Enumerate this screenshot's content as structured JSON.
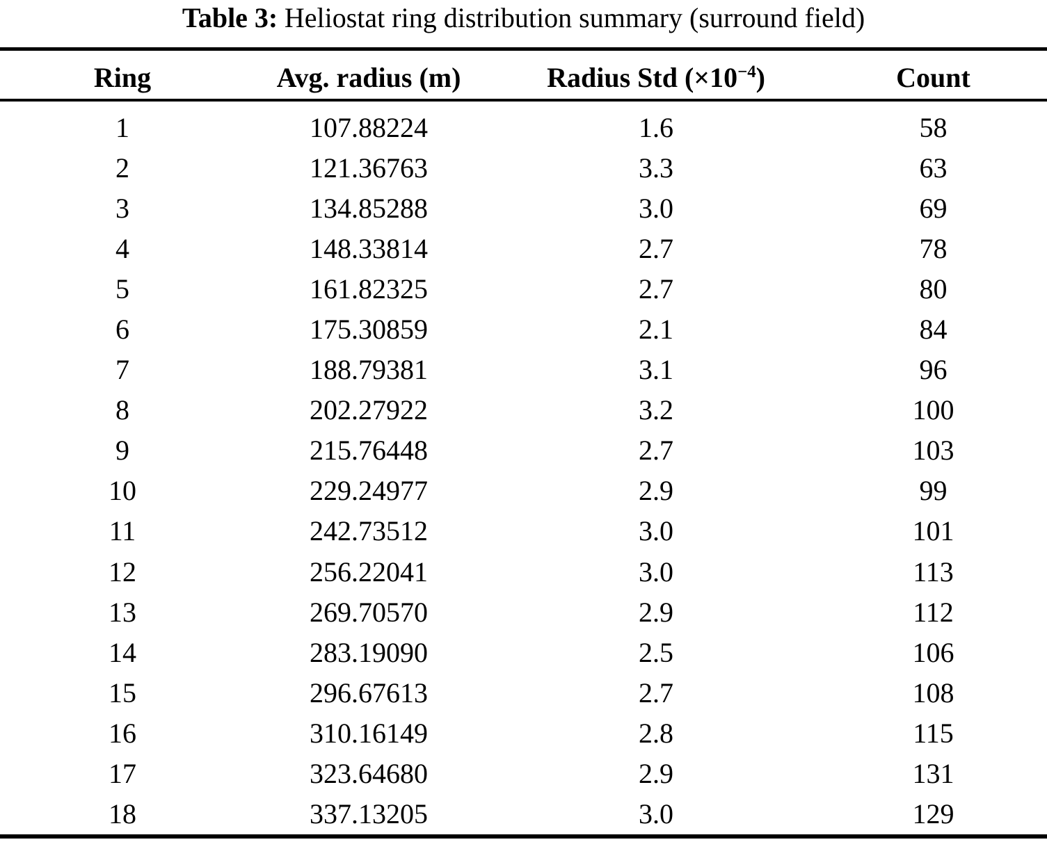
{
  "caption": {
    "label": "Table 3:",
    "text": "Heliostat ring distribution summary (surround field)"
  },
  "table": {
    "columns": [
      {
        "label": "Ring"
      },
      {
        "label": "Avg. radius (m)"
      },
      {
        "label": "Radius Std (×10",
        "sup": "−4",
        "suffix": ")"
      },
      {
        "label": "Count"
      }
    ],
    "rows": [
      [
        "1",
        "107.88224",
        "1.6",
        "58"
      ],
      [
        "2",
        "121.36763",
        "3.3",
        "63"
      ],
      [
        "3",
        "134.85288",
        "3.0",
        "69"
      ],
      [
        "4",
        "148.33814",
        "2.7",
        "78"
      ],
      [
        "5",
        "161.82325",
        "2.7",
        "80"
      ],
      [
        "6",
        "175.30859",
        "2.1",
        "84"
      ],
      [
        "7",
        "188.79381",
        "3.1",
        "96"
      ],
      [
        "8",
        "202.27922",
        "3.2",
        "100"
      ],
      [
        "9",
        "215.76448",
        "2.7",
        "103"
      ],
      [
        "10",
        "229.24977",
        "2.9",
        "99"
      ],
      [
        "11",
        "242.73512",
        "3.0",
        "101"
      ],
      [
        "12",
        "256.22041",
        "3.0",
        "113"
      ],
      [
        "13",
        "269.70570",
        "2.9",
        "112"
      ],
      [
        "14",
        "283.19090",
        "2.5",
        "106"
      ],
      [
        "15",
        "296.67613",
        "2.7",
        "108"
      ],
      [
        "16",
        "310.16149",
        "2.8",
        "115"
      ],
      [
        "17",
        "323.64680",
        "2.9",
        "131"
      ],
      [
        "18",
        "337.13205",
        "3.0",
        "129"
      ]
    ]
  },
  "colors": {
    "background": "#ffffff",
    "text": "#000000",
    "rule": "#000000"
  }
}
